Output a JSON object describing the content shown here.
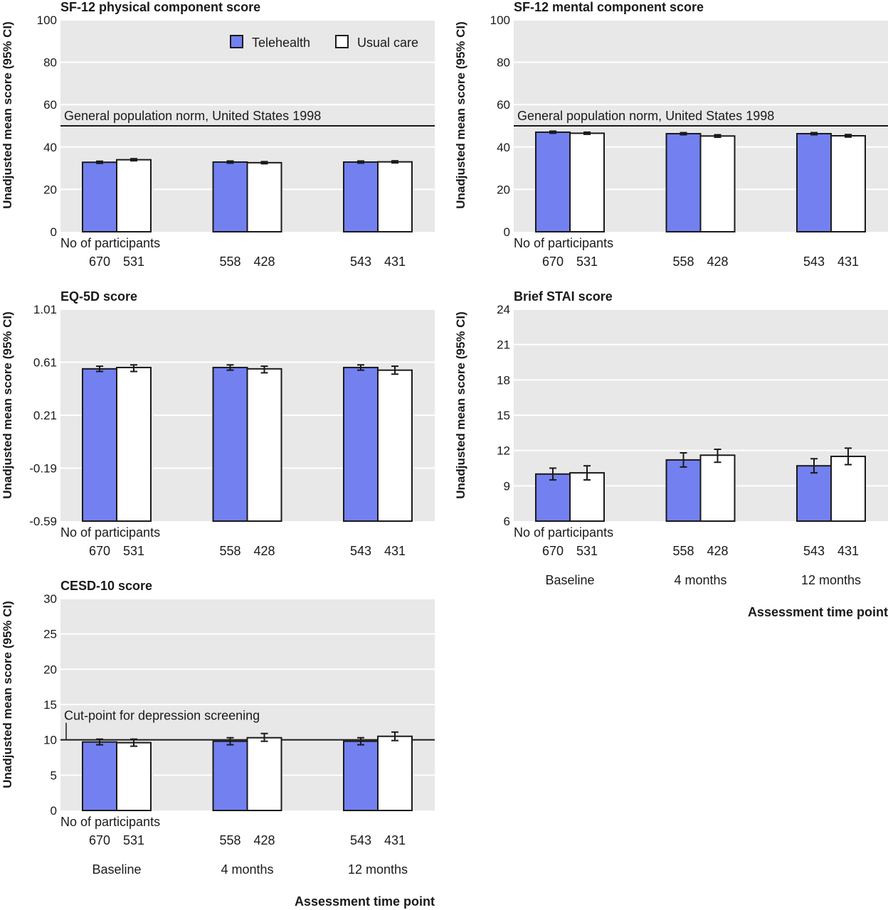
{
  "legend": [
    {
      "label": "Telehealth",
      "color": "#7380f0"
    },
    {
      "label": "Usual care",
      "color": "#ffffff"
    }
  ],
  "colors": {
    "panel_bg": "#e8e8e8",
    "grid": "#ffffff",
    "telehealth": "#7380f0",
    "usual_care": "#ffffff",
    "outline": "#1a1a1a"
  },
  "participants_label": "No of participants",
  "categories": [
    "Baseline",
    "4 months",
    "12 months"
  ],
  "xaxis_title": "Assessment time point",
  "ylabel": "Unadjusted mean score (95% CI)",
  "chart_data": [
    {
      "type": "bar",
      "title": "SF-12 physical component score",
      "ylabel": "Unadjusted mean score (95% CI)",
      "ylim": [
        0,
        100
      ],
      "yticks": [
        "0",
        "20",
        "40",
        "60",
        "80",
        "100"
      ],
      "ytick_values": [
        0,
        20,
        40,
        60,
        80,
        100
      ],
      "reference_line": {
        "value": 50,
        "label": "General population norm, United States 1998"
      },
      "categories": [
        "Baseline",
        "4 months",
        "12 months"
      ],
      "series": [
        {
          "name": "Telehealth",
          "values": [
            32.8,
            32.9,
            32.9
          ],
          "ci_low": [
            32.3,
            32.4,
            32.4
          ],
          "ci_high": [
            33.3,
            33.4,
            33.4
          ],
          "n": [
            "670",
            "558",
            "543"
          ]
        },
        {
          "name": "Usual care",
          "values": [
            34.0,
            32.6,
            33.0
          ],
          "ci_low": [
            33.5,
            32.1,
            32.5
          ],
          "ci_high": [
            34.5,
            33.1,
            33.5
          ],
          "n": [
            "531",
            "428",
            "431"
          ]
        }
      ],
      "grid": true,
      "legend_position": "top-right"
    },
    {
      "type": "bar",
      "title": "SF-12 mental component score",
      "ylabel": "Unadjusted mean score (95% CI)",
      "ylim": [
        0,
        100
      ],
      "yticks": [
        "0",
        "20",
        "40",
        "60",
        "80",
        "100"
      ],
      "ytick_values": [
        0,
        20,
        40,
        60,
        80,
        100
      ],
      "reference_line": {
        "value": 50,
        "label": "General population norm, United States 1998"
      },
      "categories": [
        "Baseline",
        "4 months",
        "12 months"
      ],
      "series": [
        {
          "name": "Telehealth",
          "values": [
            47.0,
            46.3,
            46.3
          ],
          "ci_low": [
            46.5,
            45.8,
            45.8
          ],
          "ci_high": [
            47.5,
            46.8,
            46.8
          ],
          "n": [
            "670",
            "558",
            "543"
          ]
        },
        {
          "name": "Usual care",
          "values": [
            46.5,
            45.2,
            45.3
          ],
          "ci_low": [
            46.0,
            44.6,
            44.7
          ],
          "ci_high": [
            47.0,
            45.8,
            45.9
          ],
          "n": [
            "531",
            "428",
            "431"
          ]
        }
      ],
      "grid": true
    },
    {
      "type": "bar",
      "title": "EQ-5D score",
      "ylabel": "Unadjusted mean score (95% CI)",
      "ylim": [
        -0.59,
        1.01
      ],
      "yticks": [
        "-0.59",
        "-0.19",
        "0.21",
        "0.61",
        "1.01"
      ],
      "ytick_values": [
        -0.59,
        -0.19,
        0.21,
        0.61,
        1.01
      ],
      "categories": [
        "Baseline",
        "4 months",
        "12 months"
      ],
      "series": [
        {
          "name": "Telehealth",
          "values": [
            0.56,
            0.57,
            0.57
          ],
          "ci_low": [
            0.54,
            0.55,
            0.55
          ],
          "ci_high": [
            0.58,
            0.59,
            0.59
          ],
          "n": [
            "670",
            "558",
            "543"
          ]
        },
        {
          "name": "Usual care",
          "values": [
            0.57,
            0.56,
            0.55
          ],
          "ci_low": [
            0.54,
            0.53,
            0.52
          ],
          "ci_high": [
            0.59,
            0.58,
            0.58
          ],
          "n": [
            "531",
            "428",
            "431"
          ]
        }
      ],
      "grid": true
    },
    {
      "type": "bar",
      "title": "Brief STAI score",
      "ylabel": "Unadjusted mean score (95% CI)",
      "ylim": [
        6,
        24
      ],
      "yticks": [
        "6",
        "9",
        "12",
        "15",
        "18",
        "21",
        "24"
      ],
      "ytick_values": [
        6,
        9,
        12,
        15,
        18,
        21,
        24
      ],
      "categories": [
        "Baseline",
        "4 months",
        "12 months"
      ],
      "series": [
        {
          "name": "Telehealth",
          "values": [
            10.0,
            11.2,
            10.7
          ],
          "ci_low": [
            9.5,
            10.6,
            10.1
          ],
          "ci_high": [
            10.5,
            11.8,
            11.3
          ],
          "n": [
            "670",
            "558",
            "543"
          ]
        },
        {
          "name": "Usual care",
          "values": [
            10.1,
            11.6,
            11.5
          ],
          "ci_low": [
            9.5,
            11.0,
            10.8
          ],
          "ci_high": [
            10.7,
            12.1,
            12.2
          ],
          "n": [
            "531",
            "428",
            "431"
          ]
        }
      ],
      "grid": true,
      "show_categories": true
    },
    {
      "type": "bar",
      "title": "CESD-10 score",
      "ylabel": "Unadjusted mean score (95% CI)",
      "ylim": [
        0,
        30
      ],
      "yticks": [
        "0",
        "5",
        "10",
        "15",
        "20",
        "25",
        "30"
      ],
      "ytick_values": [
        0,
        5,
        10,
        15,
        20,
        25,
        30
      ],
      "reference_line": {
        "value": 10,
        "label": "Cut-point for depression screening"
      },
      "categories": [
        "Baseline",
        "4 months",
        "12 months"
      ],
      "series": [
        {
          "name": "Telehealth",
          "values": [
            9.7,
            9.8,
            9.8
          ],
          "ci_low": [
            9.3,
            9.3,
            9.3
          ],
          "ci_high": [
            10.1,
            10.3,
            10.3
          ],
          "n": [
            "670",
            "558",
            "543"
          ]
        },
        {
          "name": "Usual care",
          "values": [
            9.6,
            10.3,
            10.5
          ],
          "ci_low": [
            9.1,
            9.8,
            9.9
          ],
          "ci_high": [
            10.1,
            10.9,
            11.1
          ],
          "n": [
            "531",
            "428",
            "431"
          ]
        }
      ],
      "grid": true,
      "show_categories": true
    }
  ]
}
